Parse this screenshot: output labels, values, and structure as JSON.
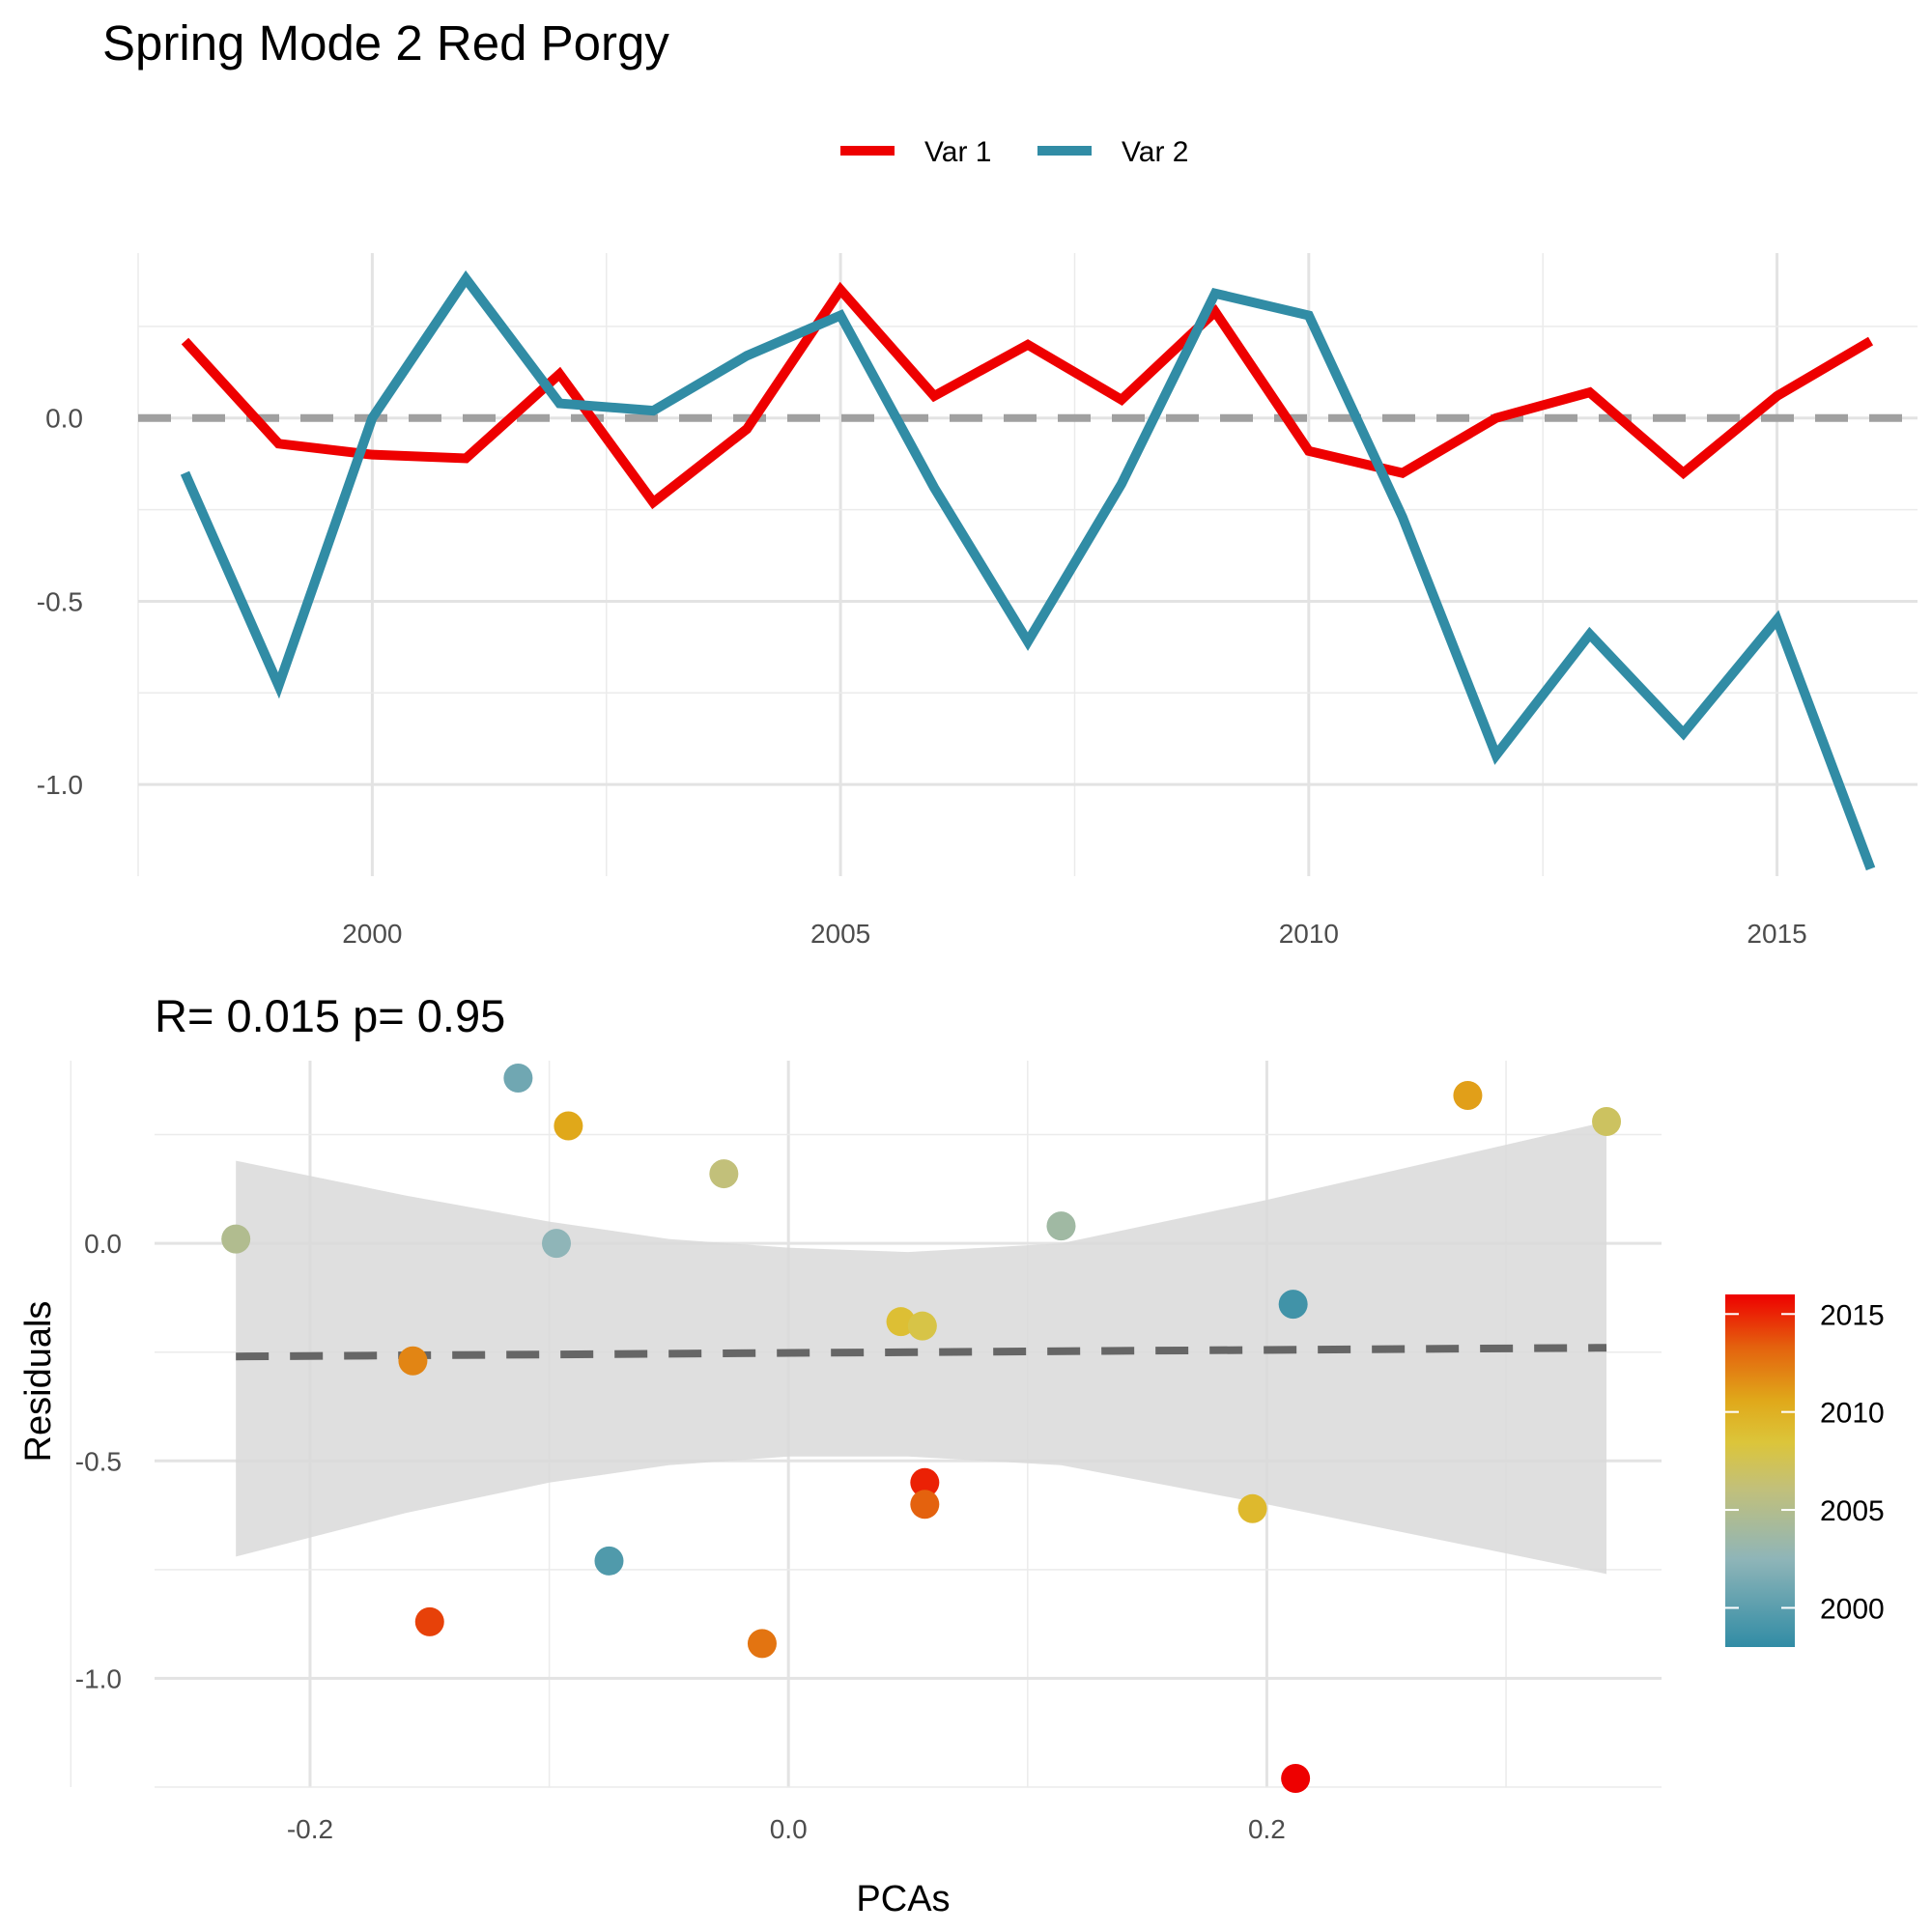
{
  "title": "Spring Mode 2  Red Porgy",
  "chart_data": [
    {
      "type": "line",
      "title": "Spring Mode 2  Red Porgy",
      "legend_position": "top",
      "x": [
        1998,
        1999,
        2000,
        2001,
        2002,
        2003,
        2004,
        2005,
        2006,
        2007,
        2008,
        2009,
        2010,
        2011,
        2012,
        2013,
        2014,
        2015,
        2016
      ],
      "xticks": [
        2000,
        2005,
        2010,
        2015
      ],
      "yticks": [
        0.0,
        -0.5,
        -1.0
      ],
      "ytick_labels": [
        "0.0",
        "-0.5",
        "-1.0"
      ],
      "xlim": [
        1997.5,
        2016.5
      ],
      "ylim": [
        -1.25,
        0.45
      ],
      "series": [
        {
          "name": "Var 1",
          "color": "#EE0000",
          "values": [
            0.21,
            -0.07,
            -0.1,
            -0.11,
            0.12,
            -0.23,
            -0.03,
            0.35,
            0.06,
            0.2,
            0.05,
            0.29,
            -0.09,
            -0.15,
            0.0,
            0.07,
            -0.15,
            0.06,
            0.21
          ]
        },
        {
          "name": "Var 2",
          "color": "#318CA5",
          "values": [
            -0.15,
            -0.73,
            0.0,
            0.38,
            0.04,
            0.02,
            0.17,
            0.28,
            -0.19,
            -0.61,
            -0.18,
            0.34,
            0.28,
            -0.27,
            -0.92,
            -0.59,
            -0.86,
            -0.55,
            -1.23
          ]
        }
      ],
      "reference_line": 0,
      "grid": true
    },
    {
      "type": "scatter",
      "title": "R= 0.015  p= 0.95",
      "xlabel": "PCAs",
      "ylabel": "Residuals",
      "xticks": [
        -0.2,
        0.0,
        0.2
      ],
      "xtick_labels": [
        "-0.2",
        "0.0",
        "0.2"
      ],
      "yticks": [
        0.0,
        -0.5,
        -1.0
      ],
      "ytick_labels": [
        "0.0",
        "-0.5",
        "-1.0"
      ],
      "xlim": [
        -0.265,
        0.365
      ],
      "ylim": [
        -1.25,
        0.42
      ],
      "points": [
        {
          "x": -0.231,
          "y": 0.01,
          "year": 2003
        },
        {
          "x": -0.113,
          "y": 0.38,
          "year": 2000
        },
        {
          "x": -0.092,
          "y": 0.27,
          "year": 2009
        },
        {
          "x": -0.097,
          "y": 0.0,
          "year": 2001
        },
        {
          "x": -0.157,
          "y": -0.27,
          "year": 2011
        },
        {
          "x": -0.15,
          "y": -0.87,
          "year": 2014
        },
        {
          "x": -0.075,
          "y": -0.73,
          "year": 1999
        },
        {
          "x": -0.027,
          "y": 0.16,
          "year": 2004
        },
        {
          "x": -0.011,
          "y": -0.92,
          "year": 2012
        },
        {
          "x": 0.047,
          "y": -0.18,
          "year": 2007
        },
        {
          "x": 0.056,
          "y": -0.19,
          "year": 2006
        },
        {
          "x": 0.057,
          "y": -0.55,
          "year": 2015
        },
        {
          "x": 0.057,
          "y": -0.6,
          "year": 2013
        },
        {
          "x": 0.114,
          "y": 0.04,
          "year": 2002
        },
        {
          "x": 0.194,
          "y": -0.61,
          "year": 2007.5
        },
        {
          "x": 0.211,
          "y": -0.14,
          "year": 1998.5
        },
        {
          "x": 0.212,
          "y": -1.23,
          "year": 2016
        },
        {
          "x": 0.284,
          "y": 0.34,
          "year": 2009.5
        },
        {
          "x": 0.342,
          "y": 0.28,
          "year": 2005
        }
      ],
      "fit_line": {
        "x": [
          -0.231,
          0.342
        ],
        "y": [
          -0.26,
          -0.24
        ]
      },
      "confidence_band": {
        "x": [
          -0.231,
          -0.16,
          -0.1,
          -0.05,
          0.0,
          0.05,
          0.114,
          0.2,
          0.342
        ],
        "upper": [
          0.19,
          0.11,
          0.05,
          0.01,
          -0.01,
          -0.02,
          0.0,
          0.1,
          0.28
        ],
        "lower": [
          -0.72,
          -0.62,
          -0.55,
          -0.51,
          -0.49,
          -0.49,
          -0.51,
          -0.6,
          -0.76
        ]
      },
      "colorbar": {
        "labels": [
          "2015",
          "2010",
          "2005",
          "2000"
        ],
        "values": [
          2015,
          2010,
          2005,
          2000
        ],
        "min": 1998,
        "max": 2016
      },
      "grid": true
    }
  ]
}
